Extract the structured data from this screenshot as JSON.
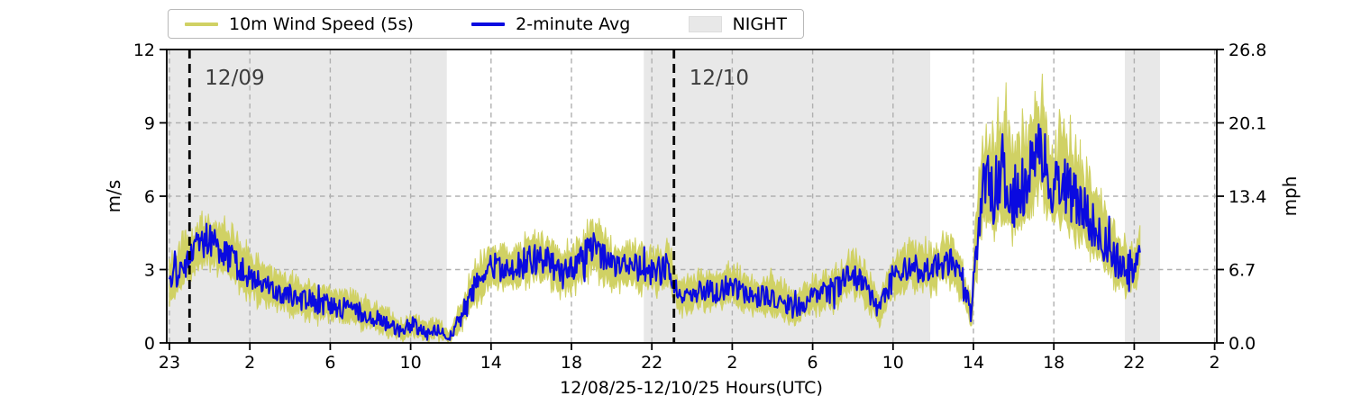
{
  "colors": {
    "wind_5s": "#d0d164",
    "avg_2min": "#0a0ae0",
    "night_shade": "#e8e8e8",
    "grid": "#b0b0b0",
    "day_line": "#000000",
    "annotation_text": "#3d3d3d",
    "spine": "#000000"
  },
  "legend": {
    "items": [
      {
        "label": "10m Wind Speed (5s)",
        "sample": "line"
      },
      {
        "label": "2-minute Avg",
        "sample": "line"
      },
      {
        "label": "NIGHT",
        "sample": "patch"
      }
    ]
  },
  "chart_data": {
    "type": "line",
    "title": "",
    "xlabel": "12/08/25-12/10/25  Hours(UTC)",
    "ylabel_left": "m/s",
    "ylabel_right": "mph",
    "ylim_ms": [
      0,
      12
    ],
    "yticks_ms": [
      {
        "label": "0",
        "v": 0
      },
      {
        "label": "3",
        "v": 3
      },
      {
        "label": "6",
        "v": 6
      },
      {
        "label": "9",
        "v": 9
      },
      {
        "label": "12",
        "v": 12
      }
    ],
    "yticks_mph": [
      {
        "label": "0.0",
        "v": 0
      },
      {
        "label": "6.7",
        "v": 3
      },
      {
        "label": "13.4",
        "v": 6
      },
      {
        "label": "20.1",
        "v": 9
      },
      {
        "label": "26.8",
        "v": 12
      }
    ],
    "grid_lines_ms": [
      3,
      6,
      9
    ],
    "x_unit": "hours since 12/08/25 23:00 UTC",
    "x_range_data": [
      0,
      48.3
    ],
    "xticks": [
      {
        "label": "23",
        "h": 0
      },
      {
        "label": "2",
        "h": 4
      },
      {
        "label": "6",
        "h": 8
      },
      {
        "label": "10",
        "h": 12
      },
      {
        "label": "14",
        "h": 16
      },
      {
        "label": "18",
        "h": 20
      },
      {
        "label": "22",
        "h": 24
      },
      {
        "label": "2",
        "h": 28
      },
      {
        "label": "6",
        "h": 32
      },
      {
        "label": "10",
        "h": 36
      },
      {
        "label": "14",
        "h": 40
      },
      {
        "label": "18",
        "h": 44
      },
      {
        "label": "22",
        "h": 48
      },
      {
        "label": "2",
        "h": 52
      }
    ],
    "night_regions_h": [
      [
        -0.14,
        13.8
      ],
      [
        23.6,
        37.85
      ],
      [
        47.53,
        49.28
      ]
    ],
    "day_markers": [
      {
        "label": "12/09",
        "h": 1.0
      },
      {
        "label": "12/10",
        "h": 25.1
      }
    ],
    "series": [
      {
        "name": "10m Wind Speed (5s)",
        "render": "noisy envelope band between lo and hi"
      },
      {
        "name": "2-minute Avg",
        "render": "jagged line around avg"
      }
    ],
    "series_anchors": {
      "note": "hourly visual estimates in m/s read from plot",
      "h": [
        0,
        0.8,
        1.9,
        2.6,
        4,
        5,
        6,
        7,
        8,
        9,
        10,
        11,
        11.6,
        12.1,
        12.7,
        13.3,
        13.9,
        14.4,
        15.1,
        16.1,
        17.1,
        18,
        18.9,
        19.5,
        20.1,
        21.1,
        22.1,
        23,
        24,
        24.8,
        25.4,
        26.3,
        27.2,
        28,
        29,
        30,
        31,
        32,
        33,
        34,
        34.6,
        35.3,
        36,
        37,
        38,
        38.9,
        39.5,
        39.9,
        40.3,
        40.6,
        41,
        41.5,
        42,
        42.5,
        43,
        43.3,
        43.9,
        44.5,
        45,
        45.5,
        46,
        46.5,
        47,
        47.6,
        48.1,
        48.3
      ],
      "avg": [
        2.5,
        3.2,
        4.3,
        3.8,
        2.7,
        2.3,
        1.9,
        1.7,
        1.5,
        1.4,
        1.1,
        0.7,
        0.4,
        0.8,
        0.4,
        0.6,
        0.15,
        0.9,
        2.2,
        3.2,
        3.0,
        3.4,
        3.3,
        2.8,
        3.0,
        3.9,
        3.0,
        3.2,
        2.9,
        3.2,
        1.8,
        2.1,
        2.2,
        2.3,
        1.9,
        2.0,
        1.4,
        1.8,
        2.1,
        2.9,
        2.3,
        1.3,
        2.7,
        3.1,
        3.0,
        3.4,
        2.2,
        1.2,
        5.5,
        6.8,
        5.8,
        6.3,
        5.6,
        6.2,
        7.0,
        8.0,
        6.0,
        6.4,
        5.6,
        5.2,
        4.6,
        4.0,
        3.4,
        2.9,
        3.0,
        4.2
      ],
      "hi": [
        3.9,
        4.8,
        5.9,
        5.4,
        4.1,
        3.5,
        3.1,
        2.8,
        2.6,
        2.4,
        2.0,
        1.5,
        1.0,
        1.5,
        1.0,
        1.2,
        0.6,
        1.7,
        3.4,
        4.6,
        4.4,
        5.0,
        4.8,
        4.2,
        4.4,
        5.6,
        4.4,
        4.6,
        4.2,
        4.4,
        2.9,
        3.2,
        3.3,
        3.4,
        3.0,
        3.1,
        2.4,
        2.9,
        3.2,
        4.2,
        3.4,
        2.3,
        4.0,
        4.5,
        4.4,
        4.9,
        3.4,
        2.2,
        8.5,
        9.8,
        10.0,
        11.2,
        9.6,
        10.0,
        10.5,
        11.5,
        9.2,
        10.6,
        8.8,
        8.2,
        7.4,
        6.4,
        5.6,
        4.6,
        4.6,
        5.6
      ],
      "lo": [
        1.3,
        1.9,
        2.9,
        2.5,
        1.5,
        1.2,
        0.9,
        0.7,
        0.6,
        0.5,
        0.3,
        0.1,
        0.0,
        0.1,
        0.0,
        0.0,
        0.0,
        0.1,
        1.2,
        2.0,
        1.8,
        2.2,
        2.0,
        1.6,
        1.8,
        2.5,
        1.8,
        2.0,
        1.7,
        1.9,
        0.9,
        1.1,
        1.2,
        1.3,
        1.0,
        1.0,
        0.6,
        0.9,
        1.1,
        1.7,
        1.3,
        0.5,
        1.6,
        1.9,
        1.8,
        2.1,
        1.2,
        0.4,
        3.0,
        4.5,
        4.0,
        4.3,
        3.8,
        4.2,
        5.0,
        5.8,
        4.2,
        4.4,
        3.8,
        3.4,
        3.0,
        2.5,
        2.1,
        1.7,
        1.8,
        2.9
      ]
    }
  }
}
